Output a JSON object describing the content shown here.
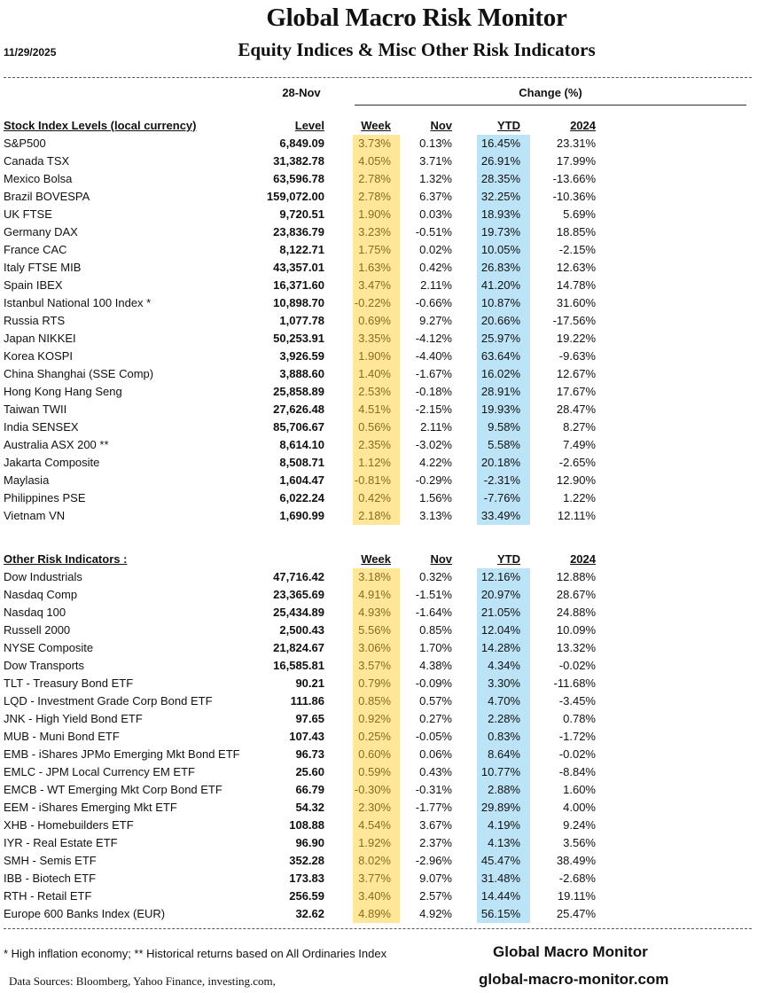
{
  "header": {
    "title": "Global Macro Risk Monitor",
    "subtitle": "Equity Indices & Misc Other Risk Indicators",
    "date": "11/29/2025",
    "level_date": "28-Nov",
    "change_label": "Change (%)"
  },
  "colors": {
    "week_highlight": "#FFE699",
    "ytd_highlight": "#BDE3F7"
  },
  "stock_section": {
    "columns": [
      "Stock Index Levels (local currency)",
      "Level",
      "Week",
      "Nov",
      "YTD",
      "2024"
    ],
    "rows": [
      [
        "S&P500",
        "6,849.09",
        "3.73%",
        "0.13%",
        "16.45%",
        "23.31%"
      ],
      [
        "Canada TSX",
        "31,382.78",
        "4.05%",
        "3.71%",
        "26.91%",
        "17.99%"
      ],
      [
        "Mexico Bolsa",
        "63,596.78",
        "2.78%",
        "1.32%",
        "28.35%",
        "-13.66%"
      ],
      [
        "Brazil BOVESPA",
        "159,072.00",
        "2.78%",
        "6.37%",
        "32.25%",
        "-10.36%"
      ],
      [
        "UK FTSE",
        "9,720.51",
        "1.90%",
        "0.03%",
        "18.93%",
        "5.69%"
      ],
      [
        "Germany DAX",
        "23,836.79",
        "3.23%",
        "-0.51%",
        "19.73%",
        "18.85%"
      ],
      [
        "France CAC",
        "8,122.71",
        "1.75%",
        "0.02%",
        "10.05%",
        "-2.15%"
      ],
      [
        "Italy FTSE MIB",
        "43,357.01",
        "1.63%",
        "0.42%",
        "26.83%",
        "12.63%"
      ],
      [
        "Spain IBEX",
        "16,371.60",
        "3.47%",
        "2.11%",
        "41.20%",
        "14.78%"
      ],
      [
        "Istanbul National 100 Index *",
        "10,898.70",
        "-0.22%",
        "-0.66%",
        "10.87%",
        "31.60%"
      ],
      [
        "Russia RTS",
        "1,077.78",
        "0.69%",
        "9.27%",
        "20.66%",
        "-17.56%"
      ],
      [
        "Japan NIKKEI",
        "50,253.91",
        "3.35%",
        "-4.12%",
        "25.97%",
        "19.22%"
      ],
      [
        "Korea KOSPI",
        "3,926.59",
        "1.90%",
        "-4.40%",
        "63.64%",
        "-9.63%"
      ],
      [
        "China Shanghai (SSE Comp)",
        "3,888.60",
        "1.40%",
        "-1.67%",
        "16.02%",
        "12.67%"
      ],
      [
        "Hong Kong Hang Seng",
        "25,858.89",
        "2.53%",
        "-0.18%",
        "28.91%",
        "17.67%"
      ],
      [
        "Taiwan  TWII",
        "27,626.48",
        "4.51%",
        "-2.15%",
        "19.93%",
        "28.47%"
      ],
      [
        "India SENSEX",
        "85,706.67",
        "0.56%",
        "2.11%",
        "9.58%",
        "8.27%"
      ],
      [
        "Australia ASX 200 **",
        "8,614.10",
        "2.35%",
        "-3.02%",
        "5.58%",
        "7.49%"
      ],
      [
        "Jakarta Composite",
        "8,508.71",
        "1.12%",
        "4.22%",
        "20.18%",
        "-2.65%"
      ],
      [
        "Maylasia",
        "1,604.47",
        "-0.81%",
        "-0.29%",
        "-2.31%",
        "12.90%"
      ],
      [
        "Philippines PSE",
        "6,022.24",
        "0.42%",
        "1.56%",
        "-7.76%",
        "1.22%"
      ],
      [
        "Vietnam VN",
        "1,690.99",
        "2.18%",
        "3.13%",
        "33.49%",
        "12.11%"
      ]
    ]
  },
  "other_section": {
    "columns": [
      "Other Risk Indicators :",
      "",
      "Week",
      "Nov",
      "YTD",
      "2024"
    ],
    "rows": [
      [
        "Dow Industrials",
        "47,716.42",
        "3.18%",
        "0.32%",
        "12.16%",
        "12.88%"
      ],
      [
        "Nasdaq Comp",
        "23,365.69",
        "4.91%",
        "-1.51%",
        "20.97%",
        "28.67%"
      ],
      [
        "Nasdaq 100",
        "25,434.89",
        "4.93%",
        "-1.64%",
        "21.05%",
        "24.88%"
      ],
      [
        "Russell 2000",
        "2,500.43",
        "5.56%",
        "0.85%",
        "12.04%",
        "10.09%"
      ],
      [
        "NYSE Composite",
        "21,824.67",
        "3.06%",
        "1.70%",
        "14.28%",
        "13.32%"
      ],
      [
        "Dow Transports",
        "16,585.81",
        "3.57%",
        "4.38%",
        "4.34%",
        "-0.02%"
      ],
      [
        "TLT - Treasury Bond ETF",
        "90.21",
        "0.79%",
        "-0.09%",
        "3.30%",
        "-11.68%"
      ],
      [
        "LQD - Investment Grade Corp Bond ETF",
        "111.86",
        "0.85%",
        "0.57%",
        "4.70%",
        "-3.45%"
      ],
      [
        "JNK - High Yield Bond ETF",
        "97.65",
        "0.92%",
        "0.27%",
        "2.28%",
        "0.78%"
      ],
      [
        "MUB - Muni Bond ETF",
        "107.43",
        "0.25%",
        "-0.05%",
        "0.83%",
        "-1.72%"
      ],
      [
        "EMB - iShares JPMo Emerging Mkt Bond ETF",
        "96.73",
        "0.60%",
        "0.06%",
        "8.64%",
        "-0.02%"
      ],
      [
        "EMLC - JPM Local Currency EM ETF",
        "25.60",
        "0.59%",
        "0.43%",
        "10.77%",
        "-8.84%"
      ],
      [
        "EMCB - WT Emerging Mkt Corp Bond ETF",
        "66.79",
        "-0.30%",
        "-0.31%",
        "2.88%",
        "1.60%"
      ],
      [
        "EEM - iShares Emerging Mkt ETF",
        "54.32",
        "2.30%",
        "-1.77%",
        "29.89%",
        "4.00%"
      ],
      [
        "XHB - Homebuilders ETF",
        "108.88",
        "4.54%",
        "3.67%",
        "4.19%",
        "9.24%"
      ],
      [
        "IYR - Real Estate ETF",
        "96.90",
        "1.92%",
        "2.37%",
        "4.13%",
        "3.56%"
      ],
      [
        "SMH - Semis ETF",
        "352.28",
        "8.02%",
        "-2.96%",
        "45.47%",
        "38.49%"
      ],
      [
        "IBB - Biotech ETF",
        "173.83",
        "3.77%",
        "9.07%",
        "31.48%",
        "-2.68%"
      ],
      [
        "RTH - Retail ETF",
        "256.59",
        "3.40%",
        "2.57%",
        "14.44%",
        "19.11%"
      ],
      [
        "Europe 600 Banks Index (EUR)",
        "32.62",
        "4.89%",
        "4.92%",
        "56.15%",
        "25.47%"
      ]
    ]
  },
  "footer": {
    "notes": "*  High inflation economy;  **  Historical returns based on All Ordinaries Index",
    "sources": "Data Sources:  Bloomberg,  Yahoo Finance, investing.com,",
    "brand": "Global Macro Monitor",
    "website": "global-macro-monitor.com"
  }
}
